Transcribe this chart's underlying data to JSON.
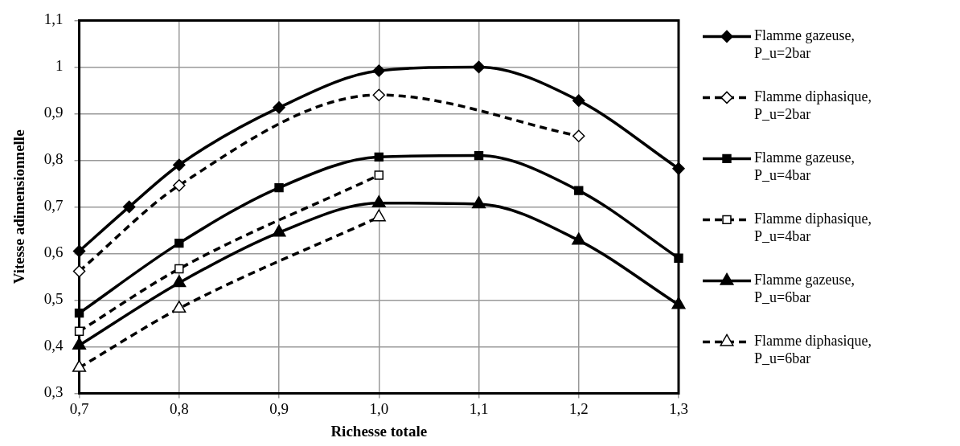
{
  "chart_data": {
    "type": "line",
    "xlabel": "Richesse totale",
    "ylabel": "Vitesse adimensionnelle",
    "xlim": [
      0.7,
      1.3
    ],
    "xticks": [
      {
        "value": 0.7,
        "label": "0,7"
      },
      {
        "value": 0.8,
        "label": "0,8"
      },
      {
        "value": 0.9,
        "label": "0,9"
      },
      {
        "value": 1.0,
        "label": "1,0"
      },
      {
        "value": 1.1,
        "label": "1,1"
      },
      {
        "value": 1.2,
        "label": "1,2"
      },
      {
        "value": 1.3,
        "label": "1,3"
      }
    ],
    "ylim": [
      0.3,
      1.1
    ],
    "yticks": [
      {
        "value": 0.3,
        "label": "0,3"
      },
      {
        "value": 0.4,
        "label": "0,4"
      },
      {
        "value": 0.5,
        "label": "0,5"
      },
      {
        "value": 0.6,
        "label": "0,6"
      },
      {
        "value": 0.7,
        "label": "0,7"
      },
      {
        "value": 0.8,
        "label": "0,8"
      },
      {
        "value": 0.9,
        "label": "0,9"
      },
      {
        "value": 1,
        "label": "1"
      },
      {
        "value": 1.1,
        "label": "1,1"
      }
    ],
    "grid": true,
    "legend": "right",
    "series": [
      {
        "name": "Flamme gazeuse, P_u=2bar",
        "color": "#000000",
        "marker": "diamond",
        "line_style": "solid",
        "x": [
          0.7,
          0.75,
          0.8,
          0.9,
          1.0,
          1.1,
          1.2,
          1.3
        ],
        "values": [
          0.605,
          0.7,
          0.79,
          0.913,
          0.992,
          1.0,
          0.928,
          0.782
        ]
      },
      {
        "name": "Flamme diphasique, P_u=2bar",
        "color": "#000000",
        "marker": "diamond",
        "line_style": "dashed",
        "x": [
          0.7,
          0.8,
          1.0,
          1.2
        ],
        "values": [
          0.562,
          0.746,
          0.94,
          0.852
        ]
      },
      {
        "name": "Flamme gazeuse, P_u=4bar",
        "color": "#000000",
        "marker": "square",
        "line_style": "solid",
        "x": [
          0.7,
          0.8,
          0.9,
          1.0,
          1.1,
          1.2,
          1.3
        ],
        "values": [
          0.472,
          0.622,
          0.741,
          0.807,
          0.81,
          0.735,
          0.59
        ]
      },
      {
        "name": "Flamme diphasique, P_u=4bar",
        "color": "#000000",
        "marker": "square",
        "line_style": "dashed",
        "x": [
          0.7,
          0.8,
          1.0
        ],
        "values": [
          0.433,
          0.567,
          0.768
        ]
      },
      {
        "name": "Flamme gazeuse, P_u=6bar",
        "color": "#000000",
        "marker": "triangle",
        "line_style": "solid",
        "x": [
          0.7,
          0.8,
          0.9,
          1.0,
          1.1,
          1.2,
          1.3
        ],
        "values": [
          0.403,
          0.537,
          0.645,
          0.708,
          0.706,
          0.628,
          0.49
        ]
      },
      {
        "name": "Flamme diphasique, P_u=6bar",
        "color": "#000000",
        "marker": "triangle",
        "line_style": "dashed",
        "x": [
          0.7,
          0.8,
          1.0
        ],
        "values": [
          0.355,
          0.482,
          0.678
        ]
      }
    ]
  }
}
